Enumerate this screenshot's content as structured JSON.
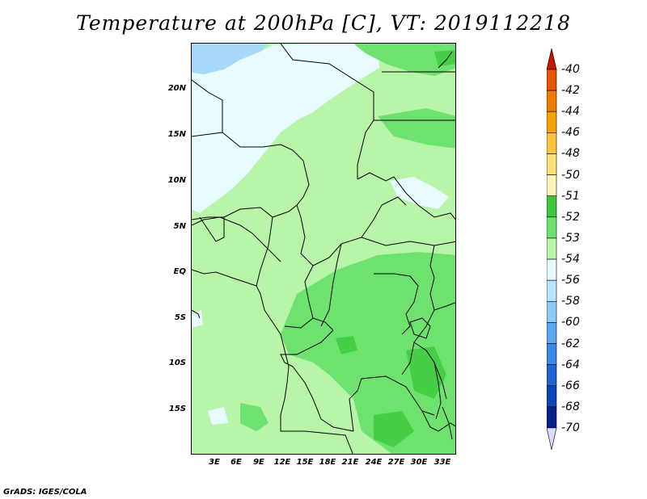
{
  "title": "Temperature at 200hPa [C], VT: 2019112218",
  "credit": "GrADS: IGES/COLA",
  "y_axis_labels": [
    "20N",
    "15N",
    "10N",
    "5N",
    "EQ",
    "5S",
    "10S",
    "15S"
  ],
  "x_axis_labels": [
    "3E",
    "6E",
    "9E",
    "12E",
    "15E",
    "18E",
    "21E",
    "24E",
    "27E",
    "30E",
    "33E"
  ],
  "colorbar": {
    "labels": [
      "-40",
      "-42",
      "-44",
      "-46",
      "-48",
      "-50",
      "-51",
      "-52",
      "-53",
      "-54",
      "-56",
      "-58",
      "-60",
      "-62",
      "-64",
      "-66",
      "-68",
      "-70"
    ],
    "colors": [
      "#d11a00",
      "#e65500",
      "#f07a00",
      "#f7a200",
      "#fbc440",
      "#fde27a",
      "#fff7b8",
      "#3ec63e",
      "#6ee26e",
      "#b8f5a8",
      "#e8fcff",
      "#b7e6ff",
      "#8ccaf8",
      "#5aa8f0",
      "#3c88e6",
      "#1e64d2",
      "#0a46b4",
      "#08208a"
    ],
    "top_arrow_color": "#c81400",
    "bottom_arrow_color": "#dcdcff"
  },
  "map_colors": {
    "base": "#b8f5a8",
    "cold": "#e8fcff",
    "colder": "#a8d8f8",
    "warm": "#6ee26e",
    "warmer": "#46cf46",
    "border": "#000000"
  }
}
